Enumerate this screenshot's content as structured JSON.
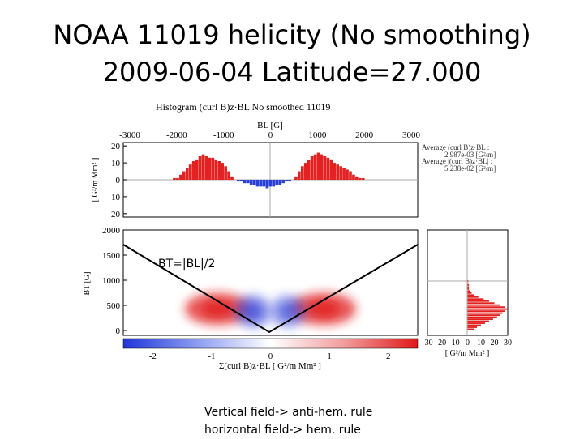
{
  "slide": {
    "title_line1": "NOAA 11019 helicity (No smoothing)",
    "title_line2": "2009-06-04 Latitude=27.000",
    "note_line1": "Vertical field-> anti-hem. rule",
    "note_line2": "horizontal field-> hem. rule"
  },
  "chart_data": [
    {
      "type": "bar",
      "title": "Histogram (curl B)z·BL No smoothed 11019",
      "top_axis_label": "BL [G]",
      "top_ticks": [
        "-3000",
        "-2000",
        "-1000",
        "0",
        "1000",
        "2000",
        "3000"
      ],
      "ylabel": "[ G²/m Mm² ]",
      "y_ticks": [
        "20",
        "10",
        "0",
        "-10",
        "-20"
      ],
      "ylim": [
        -22,
        22
      ],
      "annotations": [
        "Average (curl B)z·BL :",
        "2.987e-03 [G²/m]",
        "Average |(curl B)z·BL| :",
        "5.238e-02 [G²/m]"
      ],
      "x": [
        -1.5,
        -1.45,
        -1.4,
        -1.35,
        -1.3,
        -1.25,
        -1.2,
        -1.15,
        -1.1,
        -1.05,
        -1.0,
        -0.95,
        -0.9,
        -0.85,
        -0.8,
        -0.75,
        -0.7,
        -0.65,
        -0.6,
        -0.55,
        -0.5,
        -0.45,
        -0.4,
        -0.35,
        -0.3,
        -0.25,
        -0.2,
        -0.15,
        -0.1,
        -0.05,
        0,
        0.05,
        0.1,
        0.15,
        0.2,
        0.25,
        0.3,
        0.35,
        0.4,
        0.45,
        0.5,
        0.55,
        0.6,
        0.65,
        0.7,
        0.75,
        0.8,
        0.85,
        0.9,
        0.95,
        1.0,
        1.05,
        1.1,
        1.15,
        1.2,
        1.25,
        1.3,
        1.35,
        1.4,
        1.45,
        1.5
      ],
      "values": [
        1,
        1,
        3,
        5,
        7,
        9,
        11,
        12,
        14,
        15,
        14,
        13,
        13,
        12,
        11,
        10,
        8,
        5,
        2,
        0,
        -1,
        -1,
        -2,
        -2,
        -3,
        -3,
        -4,
        -4,
        -4,
        -5,
        -4,
        -4,
        -3,
        -3,
        -2,
        -1,
        -1,
        0,
        2,
        5,
        8,
        10,
        12,
        14,
        15,
        16,
        15,
        14,
        13,
        12,
        10,
        9,
        8,
        7,
        6,
        5,
        3,
        2,
        1,
        1,
        0
      ]
    },
    {
      "type": "heatmap",
      "xlabel": "Σ(curl B)z·BL [ G²/m Mm² ]",
      "ylabel": "BT [G]",
      "y_ticks": [
        "2000",
        "1500",
        "1000",
        "500",
        "0"
      ],
      "ylim": [
        0,
        2000
      ],
      "colorbar_ticks": [
        "-2",
        "-1",
        "0",
        "1",
        "2"
      ],
      "colorbar_range": [
        -2.5,
        2.5
      ],
      "overlay_label": "BT=|BL|/2",
      "blobs": [
        {
          "x": -0.9,
          "y": 430,
          "value": 1.0
        },
        {
          "x": 0.9,
          "y": 430,
          "value": 1.0
        },
        {
          "x": -0.3,
          "y": 380,
          "value": -0.8
        },
        {
          "x": 0.3,
          "y": 380,
          "value": -0.7
        }
      ]
    },
    {
      "type": "bar",
      "orientation": "horizontal",
      "xlabel": "[ G²/m Mm² ]",
      "x_ticks": [
        "-30",
        "-20",
        "-10",
        "0",
        "10",
        "20",
        "30"
      ],
      "xlim": [
        -30,
        30
      ],
      "y": [
        20,
        60,
        100,
        140,
        180,
        220,
        260,
        300,
        340,
        380,
        420,
        460,
        500,
        540,
        580,
        620,
        660,
        700,
        740,
        780,
        820,
        860,
        900,
        940,
        980
      ],
      "values": [
        5,
        7,
        10,
        13,
        16,
        19,
        22,
        24,
        26,
        28,
        30,
        28,
        24,
        20,
        16,
        12,
        8,
        5,
        3,
        2,
        1,
        1,
        1,
        0.5,
        0.5
      ]
    }
  ]
}
